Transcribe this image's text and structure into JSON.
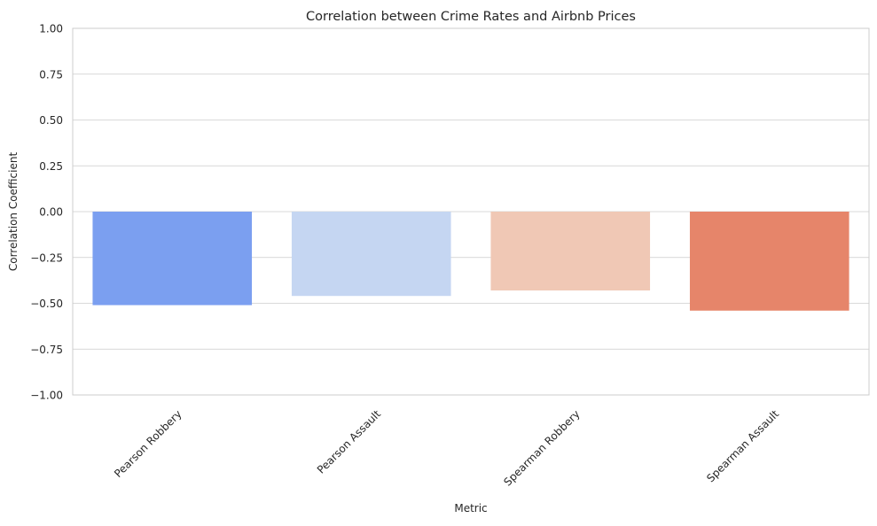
{
  "chart_data": {
    "type": "bar",
    "title": "Correlation between Crime Rates and Airbnb Prices",
    "xlabel": "Metric",
    "ylabel": "Correlation Coefficient",
    "ylim": [
      -1.0,
      1.0
    ],
    "yticks": [
      1.0,
      0.75,
      0.5,
      0.25,
      0.0,
      -0.25,
      -0.5,
      -0.75,
      -1.0
    ],
    "ytick_labels": [
      "1.00",
      "0.75",
      "0.50",
      "0.25",
      "0.00",
      "−0.25",
      "−0.50",
      "−0.75",
      "−1.00"
    ],
    "categories": [
      "Pearson Robbery",
      "Pearson Assault",
      "Spearman Robbery",
      "Spearman Assault"
    ],
    "values": [
      -0.51,
      -0.46,
      -0.43,
      -0.54
    ],
    "colors": [
      "#7b9ff0",
      "#c5d6f2",
      "#f0c8b5",
      "#e6856a"
    ],
    "grid": true
  }
}
